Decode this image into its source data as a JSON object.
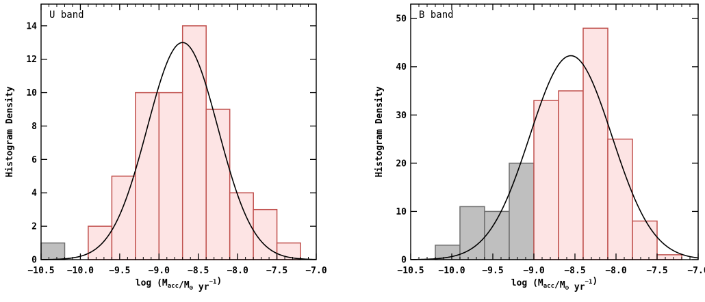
{
  "chart_data": [
    {
      "type": "bar",
      "panel_label": "U band",
      "ylabel": "Histogram Density",
      "xlabel_prefix": "log (M",
      "xlabel_sub1": "acc",
      "xlabel_mid": "/M",
      "xlabel_sub2": "⊙",
      "xlabel_mid2": " yr",
      "xlabel_sup": "−1",
      "xlabel_suffix": ")",
      "xlim": [
        -10.5,
        -7.0
      ],
      "ylim": [
        0,
        15.3
      ],
      "xticks": [
        -10.5,
        -10.0,
        -9.5,
        -9.0,
        -8.5,
        -8.0,
        -7.5,
        -7.0
      ],
      "xtick_labels": [
        "−10.5",
        "−10.0",
        "−9.5",
        "−9.0",
        "−8.5",
        "−8.0",
        "−7.5",
        "−7.0"
      ],
      "yticks": [
        0,
        2,
        4,
        6,
        8,
        10,
        12,
        14
      ],
      "ytick_labels": [
        "0",
        "2",
        "4",
        "6",
        "8",
        "10",
        "12",
        "14"
      ],
      "bin_width": 0.3,
      "series": [
        {
          "color": "#bfbfbf",
          "edge": "#6e6e6e",
          "bins": [
            {
              "x0": -10.5,
              "value": 1
            }
          ]
        },
        {
          "color": "#fde4e4",
          "edge": "#c0504d",
          "bins": [
            {
              "x0": -9.9,
              "value": 2
            },
            {
              "x0": -9.6,
              "value": 5
            },
            {
              "x0": -9.3,
              "value": 10
            },
            {
              "x0": -9.0,
              "value": 10
            },
            {
              "x0": -8.7,
              "value": 14
            },
            {
              "x0": -8.4,
              "value": 9
            },
            {
              "x0": -8.1,
              "value": 4
            },
            {
              "x0": -7.8,
              "value": 3
            },
            {
              "x0": -7.5,
              "value": 1
            }
          ]
        }
      ],
      "curve": {
        "type": "gaussian",
        "mean": -8.7,
        "sigma": 0.45,
        "peak": 13.0,
        "color": "#000000"
      }
    },
    {
      "type": "bar",
      "panel_label": "B band",
      "ylabel": "Histogram Density",
      "xlabel_prefix": "log (M",
      "xlabel_sub1": "acc",
      "xlabel_mid": "/M",
      "xlabel_sub2": "⊙",
      "xlabel_mid2": " yr",
      "xlabel_sup": "−1",
      "xlabel_suffix": ")",
      "xlim": [
        -10.5,
        -7.0
      ],
      "ylim": [
        0,
        53
      ],
      "xticks": [
        -10.5,
        -10.0,
        -9.5,
        -9.0,
        -8.5,
        -8.0,
        -7.5,
        -7.0
      ],
      "xtick_labels": [
        "−10.5",
        "−10.0",
        "−9.5",
        "−9.0",
        "−8.5",
        "−8.0",
        "−7.5",
        "−7.0"
      ],
      "yticks": [
        0,
        10,
        20,
        30,
        40,
        50
      ],
      "ytick_labels": [
        "0",
        "10",
        "20",
        "30",
        "40",
        "50"
      ],
      "bin_width": 0.3,
      "series": [
        {
          "color": "#bfbfbf",
          "edge": "#6e6e6e",
          "bins": [
            {
              "x0": -10.2,
              "value": 3
            },
            {
              "x0": -9.9,
              "value": 11
            },
            {
              "x0": -9.6,
              "value": 10
            },
            {
              "x0": -9.3,
              "value": 20
            }
          ]
        },
        {
          "color": "#fde4e4",
          "edge": "#c0504d",
          "bins": [
            {
              "x0": -9.0,
              "value": 33
            },
            {
              "x0": -8.7,
              "value": 35
            },
            {
              "x0": -8.4,
              "value": 48
            },
            {
              "x0": -8.1,
              "value": 25
            },
            {
              "x0": -7.8,
              "value": 8
            },
            {
              "x0": -7.5,
              "value": 1
            }
          ]
        }
      ],
      "curve": {
        "type": "gaussian",
        "mean": -8.55,
        "sigma": 0.5,
        "peak": 42.3,
        "color": "#000000"
      }
    }
  ]
}
